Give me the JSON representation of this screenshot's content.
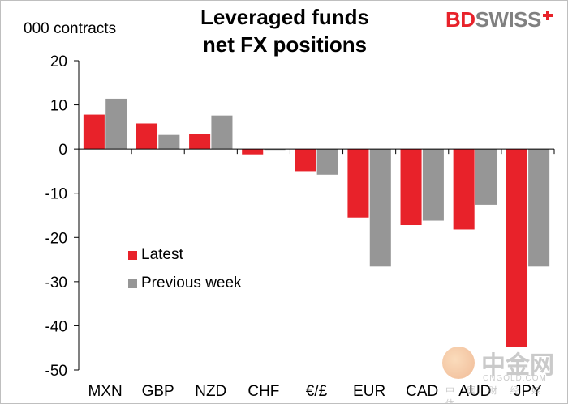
{
  "chart_data": {
    "type": "bar",
    "title": [
      "Leveraged funds",
      "net FX positions"
    ],
    "ylabel": "000 contracts",
    "categories": [
      "MXN",
      "GBP",
      "NZD",
      "CHF",
      "€/£",
      "EUR",
      "CAD",
      "AUD",
      "JPY"
    ],
    "series": [
      {
        "name": "Latest",
        "color": "#e8222a",
        "values": [
          7.8,
          5.8,
          3.5,
          -1.2,
          -5.0,
          -15.5,
          -17.2,
          -18.2,
          -44.7
        ]
      },
      {
        "name": "Previous week",
        "color": "#969696",
        "values": [
          11.4,
          3.2,
          7.6,
          -0.2,
          -5.8,
          -26.6,
          -16.2,
          -12.6,
          -26.6
        ]
      }
    ],
    "ylim": [
      -50,
      20
    ],
    "yticks": [
      20,
      10,
      0,
      -10,
      -20,
      -30,
      -40,
      -50
    ],
    "grid": false,
    "legend_position": "left-center"
  },
  "brand": {
    "part1": "BD",
    "part2": "SWISS"
  },
  "watermark": {
    "cn": "中金网",
    "en": "CNGOLD.COM",
    "sub": "中 国 财 经 媒 体"
  }
}
